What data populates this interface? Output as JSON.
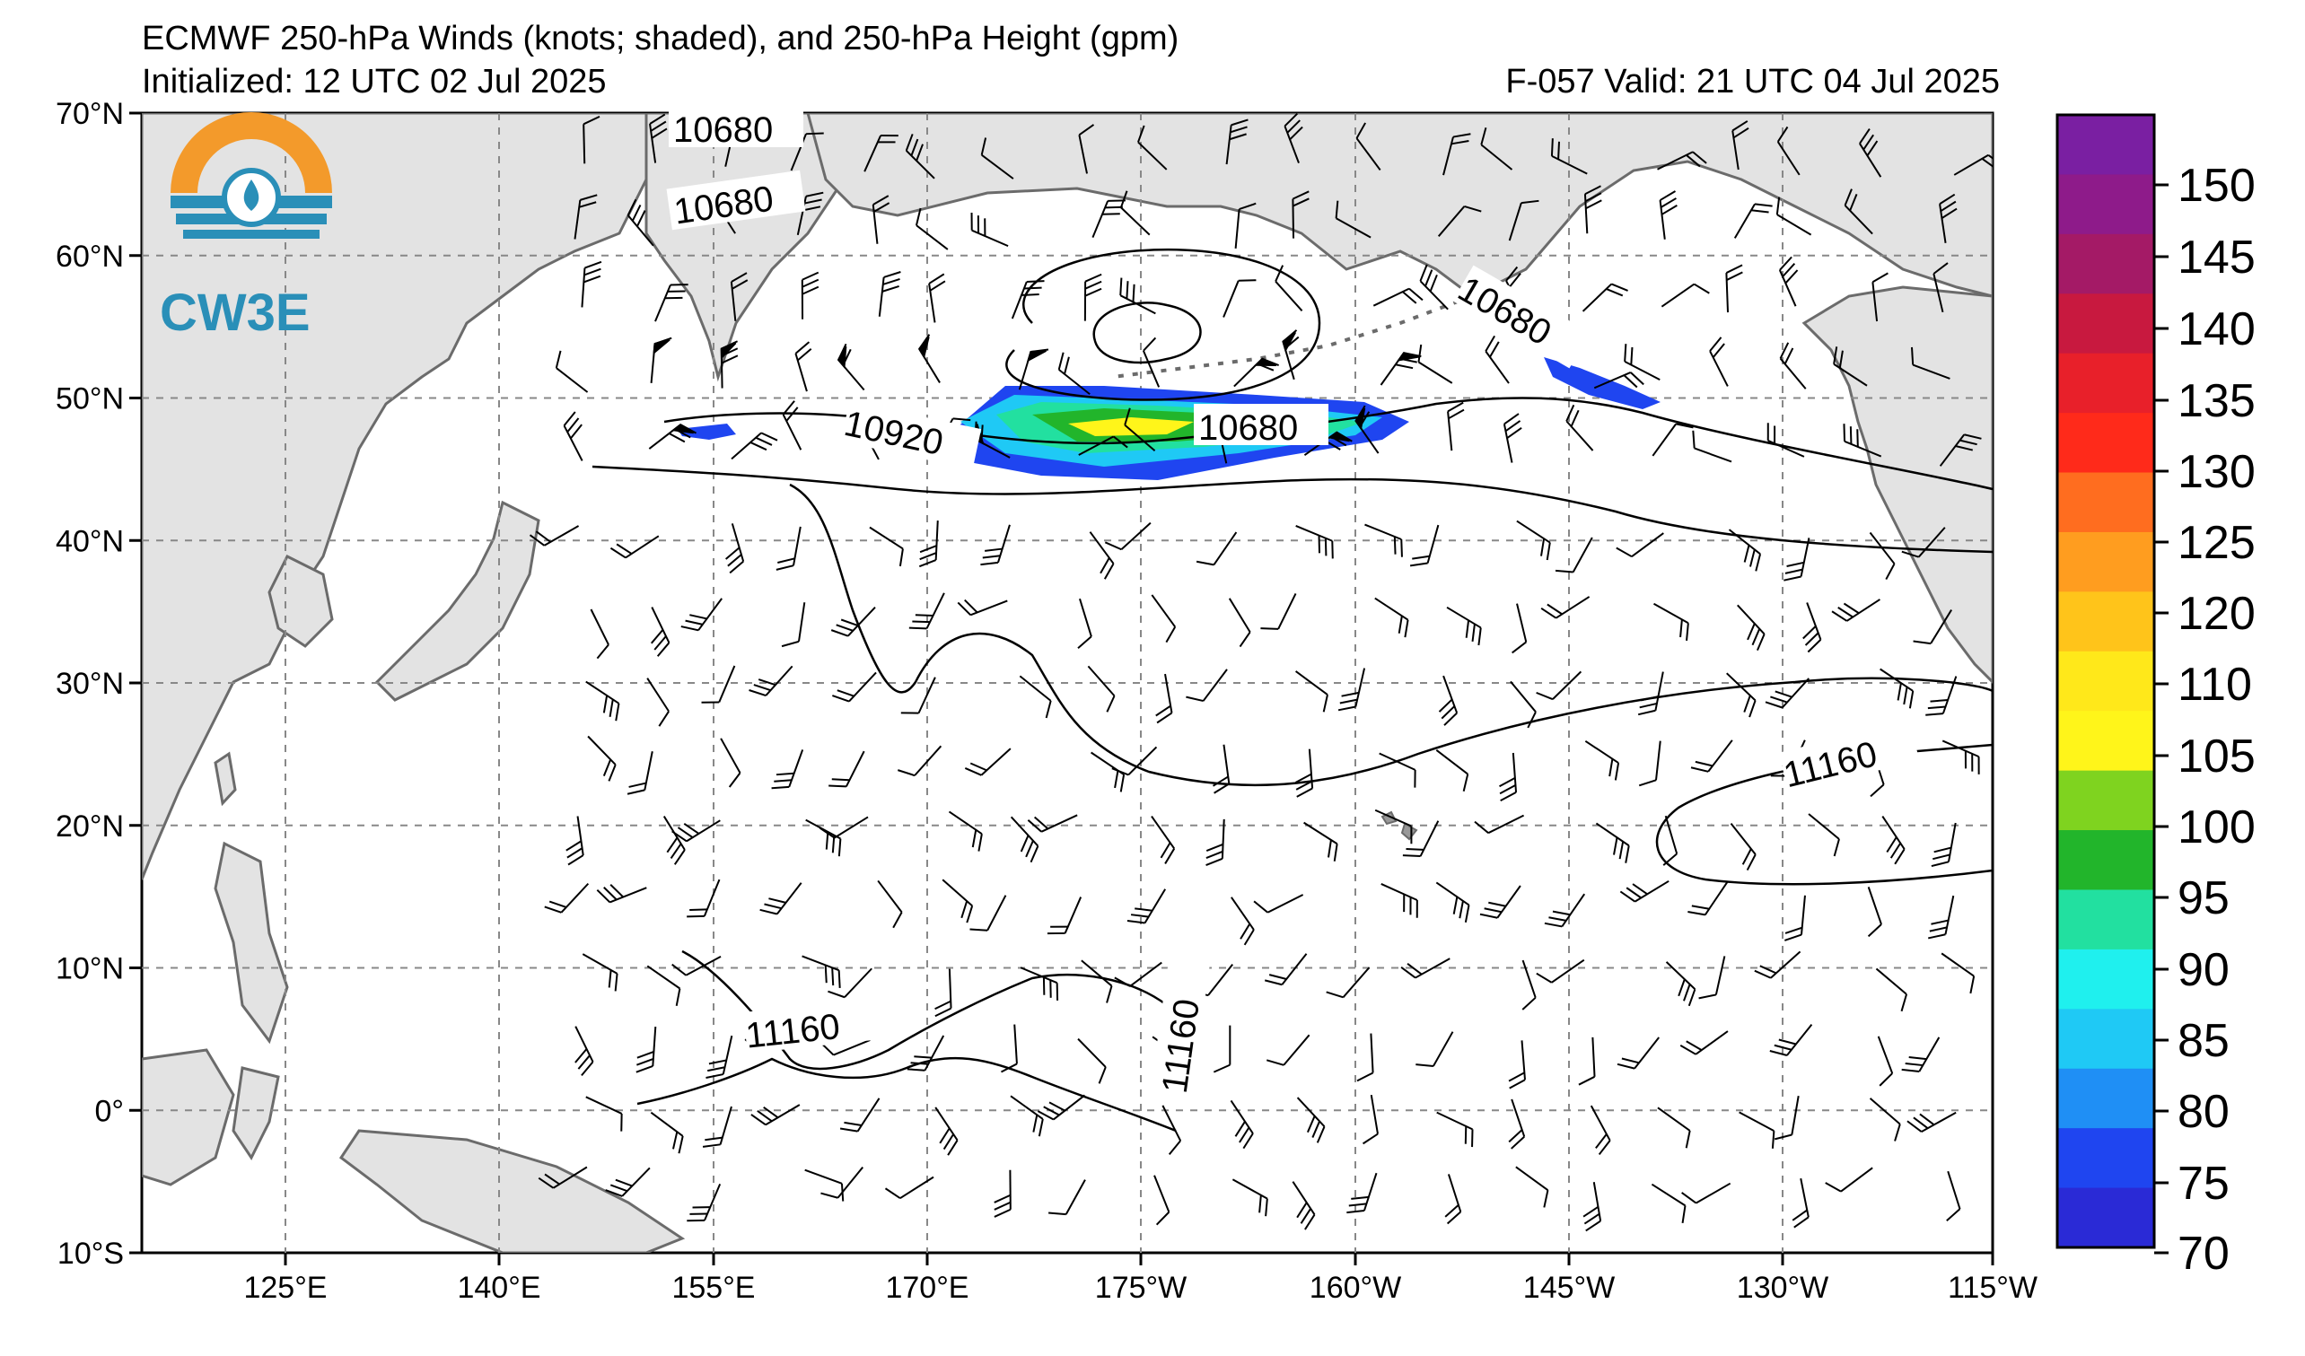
{
  "header": {
    "title": "ECMWF 250-hPa Winds (knots; shaded), and 250-hPa Height (gpm)",
    "initialized": "Initialized: 12 UTC 02 Jul 2025",
    "valid": "F-057  Valid: 21 UTC 04 Jul 2025"
  },
  "logo": {
    "text": "CW3E",
    "colors": {
      "sun": "#f39a2b",
      "water": "#2a8fb8"
    }
  },
  "map": {
    "lat_labels": [
      "70°N",
      "60°N",
      "50°N",
      "40°N",
      "30°N",
      "20°N",
      "10°N",
      "0°",
      "10°S"
    ],
    "lon_labels": [
      "125°E",
      "140°E",
      "155°E",
      "170°E",
      "175°W",
      "160°W",
      "145°W",
      "130°W",
      "115°W"
    ],
    "land_color": "#e3e3e3",
    "coast_color": "#6b6b6b",
    "contour_labels": [
      "10680",
      "10680",
      "10920",
      "10680",
      "10680",
      "11160",
      "11160",
      "11160"
    ]
  },
  "colorbar": {
    "ticks": [
      "150",
      "145",
      "140",
      "135",
      "130",
      "125",
      "120",
      "110",
      "105",
      "100",
      "95",
      "90",
      "85",
      "80",
      "75",
      "70"
    ],
    "colors": [
      "#7a1fa2",
      "#8e1b8a",
      "#a41a66",
      "#c8193f",
      "#e8202a",
      "#ff2a1a",
      "#ff6d1f",
      "#ff9d1f",
      "#ffc41a",
      "#ffe81a",
      "#fff51a",
      "#7fd31f",
      "#22b52b",
      "#22e0a0",
      "#1ff0ee",
      "#1fc9f5",
      "#1f8ff5",
      "#1f45f0",
      "#2a2ad6"
    ]
  }
}
